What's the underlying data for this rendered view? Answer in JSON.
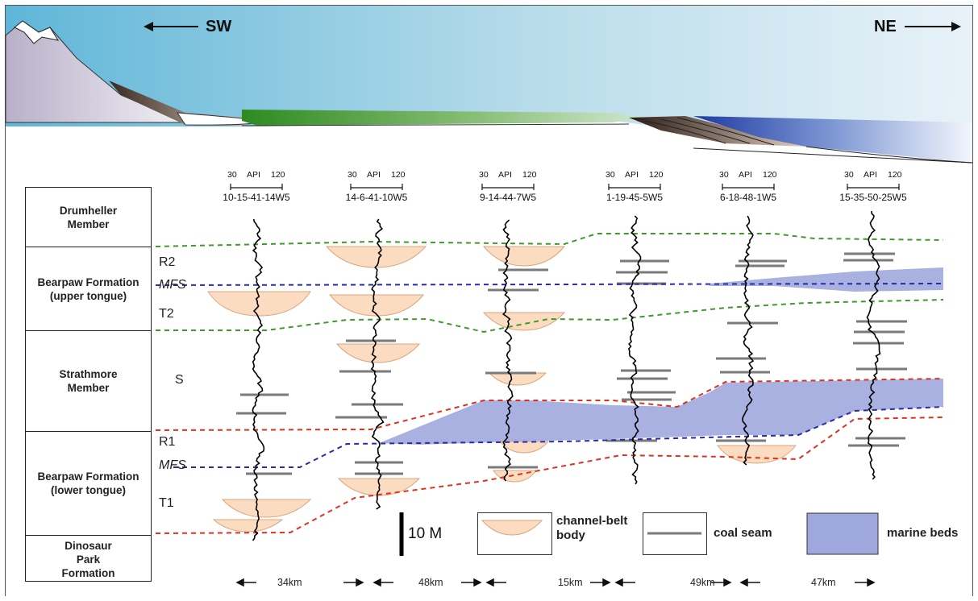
{
  "directions": {
    "left": "SW",
    "right": "NE"
  },
  "strat_column": [
    {
      "name": "Drumheller\nMember"
    },
    {
      "name": "Bearpaw Formation\n(upper tongue)"
    },
    {
      "name": "Strathmore\nMember"
    },
    {
      "name": "Bearpaw Formation\n(lower tongue)"
    },
    {
      "name": "Dinosaur\nPark\nFormation"
    }
  ],
  "unit_labels": {
    "r2": "R2",
    "mfs_upper": "MFS",
    "t2": "T2",
    "s": "S",
    "r1": "R1",
    "mfs_lower": "MFS",
    "t1": "T1"
  },
  "api_scale": {
    "min": "30",
    "label": "API",
    "max": "120"
  },
  "wells": [
    {
      "id": "10-15-41-14W5"
    },
    {
      "id": "14-6-41-10W5"
    },
    {
      "id": "9-14-44-7W5"
    },
    {
      "id": "1-19-45-5W5"
    },
    {
      "id": "6-18-48-1W5"
    },
    {
      "id": "15-35-50-25W5"
    }
  ],
  "distances": [
    "34km",
    "48km",
    "15km",
    "49km",
    "47km"
  ],
  "scale_bar": {
    "label": "10 M"
  },
  "legend": {
    "channel_belt": "channel-belt\nbody",
    "coal_seam": "coal seam",
    "marine_beds": "marine beds"
  },
  "colors": {
    "sky_left": "#5fb6d8",
    "sky_right": "#e8f2f8",
    "channel_fill": "#fbdcc0",
    "channel_stroke": "#d9a680",
    "coal": "#7a7a7a",
    "marine": "#9fa8dc",
    "green_dash": "#3f9a2c",
    "blue_dash": "#2a2aa8",
    "red_dash": "#e03020",
    "alluvial_green": "#4a9a2a",
    "sea_blue": "#2a4aa8"
  }
}
